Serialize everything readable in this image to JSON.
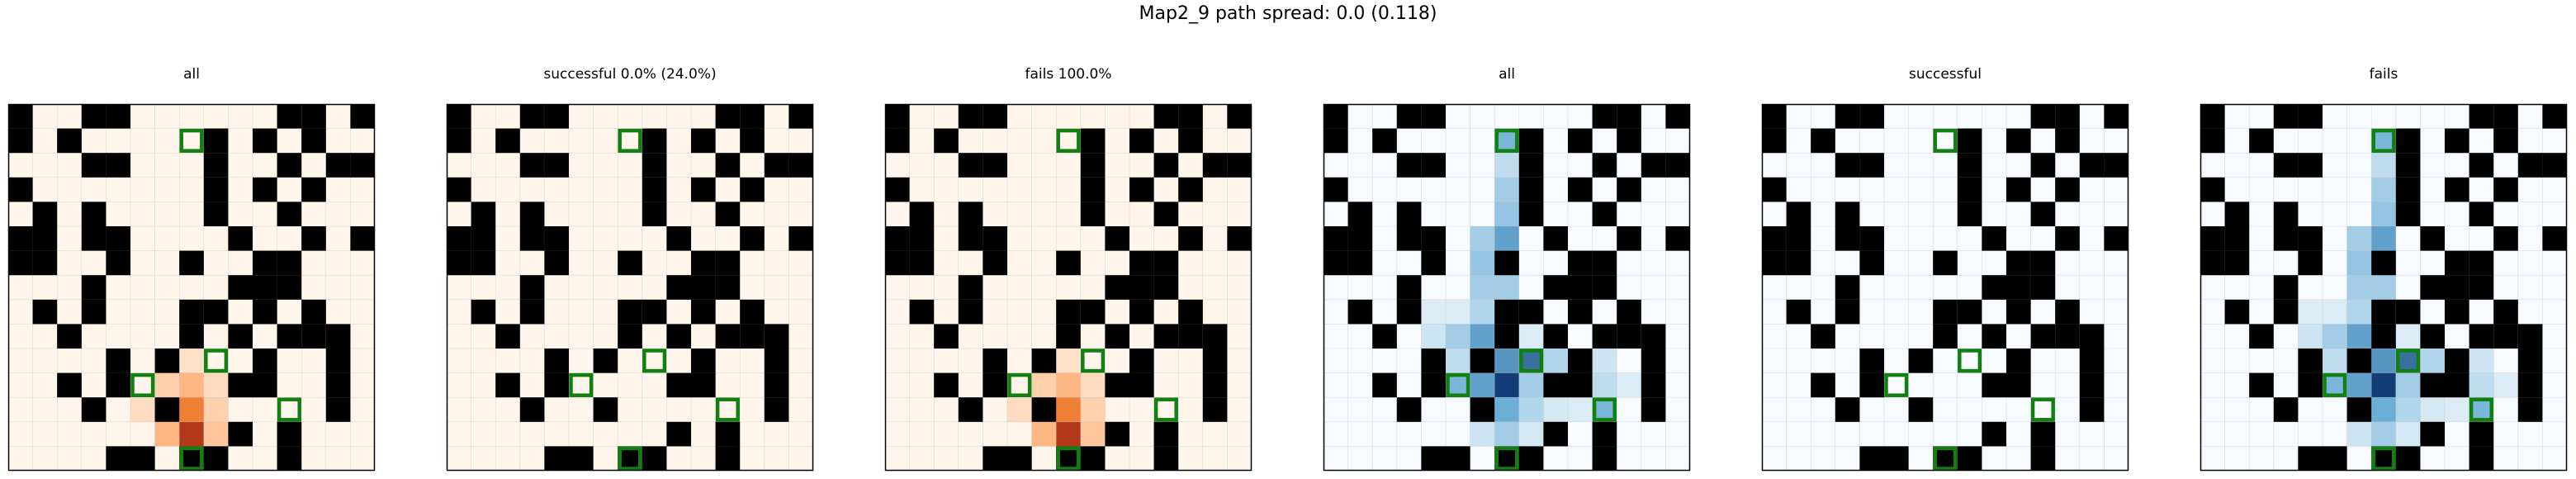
{
  "suptitle": "Map2_9 path spread: 0.0 (0.118)",
  "chart_data": {
    "type": "heatmap",
    "grid_size": 15,
    "walls": [
      [
        0,
        0
      ],
      [
        3,
        0
      ],
      [
        4,
        0
      ],
      [
        11,
        0
      ],
      [
        12,
        0
      ],
      [
        14,
        0
      ],
      [
        0,
        1
      ],
      [
        2,
        1
      ],
      [
        8,
        1
      ],
      [
        10,
        1
      ],
      [
        12,
        1
      ],
      [
        3,
        2
      ],
      [
        4,
        2
      ],
      [
        8,
        2
      ],
      [
        11,
        2
      ],
      [
        13,
        2
      ],
      [
        14,
        2
      ],
      [
        0,
        3
      ],
      [
        8,
        3
      ],
      [
        10,
        3
      ],
      [
        12,
        3
      ],
      [
        1,
        4
      ],
      [
        3,
        4
      ],
      [
        8,
        4
      ],
      [
        11,
        4
      ],
      [
        0,
        5
      ],
      [
        1,
        5
      ],
      [
        3,
        5
      ],
      [
        4,
        5
      ],
      [
        9,
        5
      ],
      [
        12,
        5
      ],
      [
        14,
        5
      ],
      [
        0,
        6
      ],
      [
        1,
        6
      ],
      [
        4,
        6
      ],
      [
        7,
        6
      ],
      [
        10,
        6
      ],
      [
        11,
        6
      ],
      [
        3,
        7
      ],
      [
        9,
        7
      ],
      [
        10,
        7
      ],
      [
        11,
        7
      ],
      [
        1,
        8
      ],
      [
        3,
        8
      ],
      [
        7,
        8
      ],
      [
        8,
        8
      ],
      [
        10,
        8
      ],
      [
        12,
        8
      ],
      [
        2,
        9
      ],
      [
        7,
        9
      ],
      [
        9,
        9
      ],
      [
        11,
        9
      ],
      [
        12,
        9
      ],
      [
        13,
        9
      ],
      [
        4,
        10
      ],
      [
        6,
        10
      ],
      [
        10,
        10
      ],
      [
        13,
        10
      ],
      [
        2,
        11
      ],
      [
        4,
        11
      ],
      [
        9,
        11
      ],
      [
        10,
        11
      ],
      [
        13,
        11
      ],
      [
        3,
        12
      ],
      [
        6,
        12
      ],
      [
        13,
        12
      ],
      [
        9,
        13
      ],
      [
        11,
        13
      ],
      [
        4,
        14
      ],
      [
        5,
        14
      ],
      [
        7,
        14
      ],
      [
        8,
        14
      ],
      [
        11,
        14
      ]
    ],
    "markers": [
      [
        7,
        1
      ],
      [
        8,
        10
      ],
      [
        5,
        11
      ],
      [
        11,
        12
      ],
      [
        7,
        14
      ]
    ],
    "panels": [
      {
        "title": "all",
        "colormap": "Oranges",
        "heat": [
          [
            7,
            10,
            0.1
          ],
          [
            6,
            11,
            0.18
          ],
          [
            7,
            11,
            0.3
          ],
          [
            8,
            11,
            0.12
          ],
          [
            5,
            12,
            0.12
          ],
          [
            6,
            12,
            0.4
          ],
          [
            7,
            12,
            0.55
          ],
          [
            8,
            12,
            0.18
          ],
          [
            6,
            13,
            0.3
          ],
          [
            7,
            13,
            0.8
          ],
          [
            8,
            13,
            0.22
          ],
          [
            7,
            14,
            0.95
          ]
        ]
      },
      {
        "title": "successful 0.0% (24.0%)",
        "colormap": "Oranges",
        "heat": []
      },
      {
        "title": "fails 100.0%",
        "colormap": "Oranges",
        "heat": [
          [
            7,
            10,
            0.1
          ],
          [
            6,
            11,
            0.18
          ],
          [
            7,
            11,
            0.3
          ],
          [
            8,
            11,
            0.12
          ],
          [
            5,
            12,
            0.12
          ],
          [
            6,
            12,
            0.4
          ],
          [
            7,
            12,
            0.55
          ],
          [
            8,
            12,
            0.18
          ],
          [
            6,
            13,
            0.3
          ],
          [
            7,
            13,
            0.8
          ],
          [
            8,
            13,
            0.22
          ],
          [
            7,
            14,
            0.95
          ]
        ]
      },
      {
        "title": "all",
        "colormap": "Blues",
        "heat": [
          [
            7,
            1,
            0.45
          ],
          [
            7,
            2,
            0.2
          ],
          [
            7,
            3,
            0.3
          ],
          [
            7,
            4,
            0.35
          ],
          [
            6,
            5,
            0.3
          ],
          [
            7,
            5,
            0.55
          ],
          [
            6,
            6,
            0.35
          ],
          [
            7,
            6,
            0.4
          ],
          [
            6,
            7,
            0.3
          ],
          [
            7,
            7,
            0.3
          ],
          [
            4,
            8,
            0.1
          ],
          [
            5,
            8,
            0.1
          ],
          [
            6,
            8,
            0.25
          ],
          [
            4,
            9,
            0.15
          ],
          [
            5,
            9,
            0.3
          ],
          [
            6,
            9,
            0.55
          ],
          [
            8,
            9,
            0.1
          ],
          [
            5,
            10,
            0.2
          ],
          [
            6,
            10,
            0.4
          ],
          [
            7,
            10,
            0.6
          ],
          [
            8,
            10,
            0.75
          ],
          [
            9,
            10,
            0.25
          ],
          [
            10,
            10,
            0.2
          ],
          [
            11,
            10,
            0.15
          ],
          [
            5,
            11,
            0.45
          ],
          [
            6,
            11,
            0.55
          ],
          [
            7,
            11,
            0.95
          ],
          [
            8,
            11,
            0.3
          ],
          [
            9,
            11,
            0.15
          ],
          [
            11,
            11,
            0.2
          ],
          [
            12,
            11,
            0.1
          ],
          [
            6,
            12,
            0.3
          ],
          [
            7,
            12,
            0.5
          ],
          [
            8,
            12,
            0.25
          ],
          [
            9,
            12,
            0.12
          ],
          [
            10,
            12,
            0.1
          ],
          [
            11,
            12,
            0.45
          ],
          [
            6,
            13,
            0.15
          ],
          [
            7,
            13,
            0.3
          ],
          [
            8,
            13,
            0.12
          ],
          [
            7,
            14,
            0.15
          ]
        ]
      },
      {
        "title": "successful",
        "colormap": "Blues",
        "heat": []
      },
      {
        "title": "fails",
        "colormap": "Blues",
        "heat": [
          [
            7,
            1,
            0.45
          ],
          [
            7,
            2,
            0.2
          ],
          [
            7,
            3,
            0.3
          ],
          [
            7,
            4,
            0.35
          ],
          [
            6,
            5,
            0.3
          ],
          [
            7,
            5,
            0.55
          ],
          [
            6,
            6,
            0.35
          ],
          [
            7,
            6,
            0.4
          ],
          [
            6,
            7,
            0.3
          ],
          [
            7,
            7,
            0.3
          ],
          [
            4,
            8,
            0.1
          ],
          [
            5,
            8,
            0.1
          ],
          [
            6,
            8,
            0.25
          ],
          [
            4,
            9,
            0.15
          ],
          [
            5,
            9,
            0.3
          ],
          [
            6,
            9,
            0.55
          ],
          [
            8,
            9,
            0.1
          ],
          [
            5,
            10,
            0.2
          ],
          [
            6,
            10,
            0.4
          ],
          [
            7,
            10,
            0.6
          ],
          [
            8,
            10,
            0.75
          ],
          [
            9,
            10,
            0.25
          ],
          [
            10,
            10,
            0.2
          ],
          [
            11,
            10,
            0.15
          ],
          [
            5,
            11,
            0.45
          ],
          [
            6,
            11,
            0.55
          ],
          [
            7,
            11,
            0.95
          ],
          [
            8,
            11,
            0.3
          ],
          [
            9,
            11,
            0.15
          ],
          [
            11,
            11,
            0.2
          ],
          [
            12,
            11,
            0.1
          ],
          [
            6,
            12,
            0.3
          ],
          [
            7,
            12,
            0.5
          ],
          [
            8,
            12,
            0.25
          ],
          [
            9,
            12,
            0.12
          ],
          [
            10,
            12,
            0.1
          ],
          [
            11,
            12,
            0.45
          ],
          [
            6,
            13,
            0.15
          ],
          [
            7,
            13,
            0.3
          ],
          [
            8,
            13,
            0.12
          ],
          [
            7,
            14,
            0.15
          ]
        ]
      }
    ],
    "colors": {
      "wall": "#000000",
      "marker": "#118011",
      "grid_line": "#bbbbbb",
      "oranges_low": "#fff5eb",
      "oranges_mid": "#fd8d3c",
      "oranges_high": "#7f0000",
      "blues_low": "#f7fbff",
      "blues_mid": "#6baed6",
      "blues_high": "#08306b"
    }
  }
}
